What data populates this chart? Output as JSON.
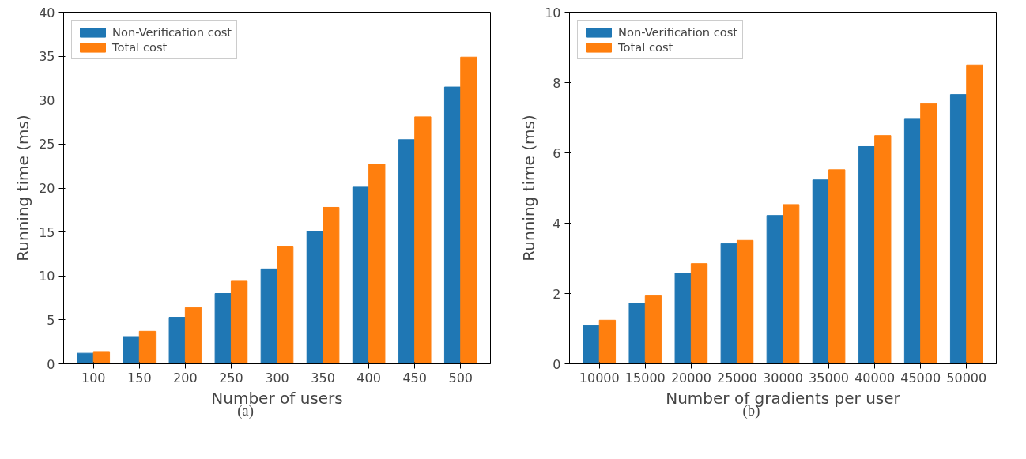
{
  "chart_data": [
    {
      "type": "bar",
      "xlabel": "Number of users",
      "ylabel": "Running time (ms)",
      "categories": [
        "100",
        "150",
        "200",
        "250",
        "300",
        "350",
        "400",
        "450",
        "500"
      ],
      "series": [
        {
          "name": "Non-Verification cost",
          "color": "#1f77b4",
          "values": [
            1.2,
            3.1,
            5.3,
            8.0,
            10.8,
            15.1,
            20.1,
            25.5,
            31.5
          ]
        },
        {
          "name": "Total cost",
          "color": "#ff7f0e",
          "values": [
            1.4,
            3.7,
            6.4,
            9.4,
            13.3,
            17.8,
            22.7,
            28.1,
            34.9
          ]
        }
      ],
      "ylim": [
        0,
        40
      ],
      "yticks": [
        0,
        5,
        10,
        15,
        20,
        25,
        30,
        35,
        40
      ],
      "legend": "top left",
      "grid": false,
      "annotations": [
        "(a)"
      ]
    },
    {
      "type": "bar",
      "xlabel": "Number of gradients per user",
      "ylabel": "Running time (ms)",
      "categories": [
        "10000",
        "15000",
        "20000",
        "25000",
        "30000",
        "35000",
        "40000",
        "45000",
        "50000"
      ],
      "series": [
        {
          "name": "Non-Verification cost",
          "color": "#1f77b4",
          "values": [
            1.08,
            1.72,
            2.58,
            3.42,
            4.22,
            5.23,
            6.18,
            6.98,
            7.66
          ]
        },
        {
          "name": "Total cost",
          "color": "#ff7f0e",
          "values": [
            1.24,
            1.93,
            2.85,
            3.51,
            4.53,
            5.52,
            6.49,
            7.4,
            8.5
          ]
        }
      ],
      "ylim": [
        0,
        10
      ],
      "yticks": [
        0,
        2,
        4,
        6,
        8,
        10
      ],
      "legend": "top left",
      "grid": false,
      "annotations": [
        "(b)"
      ]
    }
  ]
}
